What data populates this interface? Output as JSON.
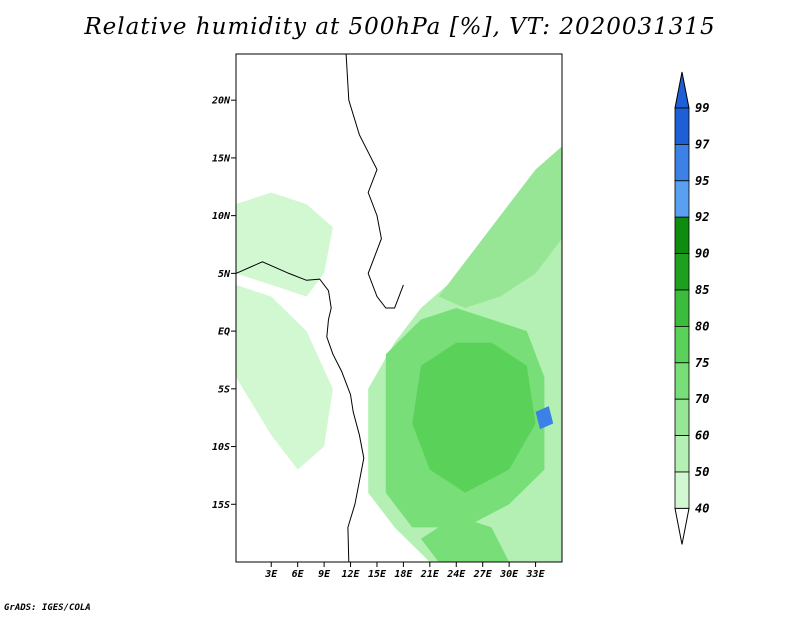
{
  "title": "Relative humidity at 500hPa [%], VT: 2020031315",
  "credit": "GrADS: IGES/COLA",
  "map": {
    "lat_range": [
      -20,
      24
    ],
    "lon_range": [
      -1,
      36
    ],
    "lat_labels": [
      {
        "text": "20N",
        "lat": 20
      },
      {
        "text": "15N",
        "lat": 15
      },
      {
        "text": "10N",
        "lat": 10
      },
      {
        "text": "5N",
        "lat": 5
      },
      {
        "text": "EQ",
        "lat": 0
      },
      {
        "text": "5S",
        "lat": -5
      },
      {
        "text": "10S",
        "lat": -10
      },
      {
        "text": "15S",
        "lat": -15
      }
    ],
    "lon_labels": [
      {
        "text": "3E",
        "lon": 3
      },
      {
        "text": "6E",
        "lon": 6
      },
      {
        "text": "9E",
        "lon": 9
      },
      {
        "text": "12E",
        "lon": 12
      },
      {
        "text": "15E",
        "lon": 15
      },
      {
        "text": "18E",
        "lon": 18
      },
      {
        "text": "21E",
        "lon": 21
      },
      {
        "text": "24E",
        "lon": 24
      },
      {
        "text": "27E",
        "lon": 27
      },
      {
        "text": "30E",
        "lon": 30
      },
      {
        "text": "33E",
        "lon": 33
      }
    ]
  },
  "colorbar": {
    "levels": [
      "99",
      "97",
      "95",
      "92",
      "90",
      "85",
      "80",
      "75",
      "70",
      "60",
      "50",
      "40"
    ],
    "colors": [
      "#1e5fd6",
      "#3c82e6",
      "#5aa0f0",
      "#0f8c0f",
      "#1ea01e",
      "#3cbc3c",
      "#5ad25a",
      "#78de78",
      "#96e696",
      "#b4f0b4",
      "#d2f8d2",
      "#f0fff0"
    ],
    "under_color": "#ffffff",
    "over_color": "#1e5fd6"
  },
  "humidity_fields": [
    {
      "name": "east-africa-band",
      "color": "#b4f0b4",
      "points": [
        [
          23,
          4
        ],
        [
          26,
          6
        ],
        [
          30,
          9
        ],
        [
          34,
          14
        ],
        [
          36,
          16
        ],
        [
          36,
          -20
        ],
        [
          21,
          -20
        ],
        [
          17,
          -17
        ],
        [
          14,
          -14
        ],
        [
          14,
          -5
        ],
        [
          17,
          -1
        ],
        [
          20,
          2
        ]
      ]
    },
    {
      "name": "central-congo-moist",
      "color": "#78de78",
      "points": [
        [
          16,
          -2
        ],
        [
          20,
          1
        ],
        [
          24,
          2
        ],
        [
          28,
          1
        ],
        [
          32,
          0
        ],
        [
          34,
          -4
        ],
        [
          34,
          -12
        ],
        [
          30,
          -15
        ],
        [
          25,
          -17
        ],
        [
          19,
          -17
        ],
        [
          16,
          -14
        ],
        [
          16,
          -8
        ]
      ]
    },
    {
      "name": "congo-core",
      "color": "#5ad25a",
      "points": [
        [
          20,
          -3
        ],
        [
          24,
          -1
        ],
        [
          28,
          -1
        ],
        [
          32,
          -3
        ],
        [
          33,
          -8
        ],
        [
          30,
          -12
        ],
        [
          25,
          -14
        ],
        [
          21,
          -12
        ],
        [
          19,
          -8
        ]
      ]
    },
    {
      "name": "northeast-plume",
      "color": "#96e696",
      "points": [
        [
          22,
          3
        ],
        [
          25,
          6
        ],
        [
          29,
          10
        ],
        [
          33,
          14
        ],
        [
          36,
          16
        ],
        [
          36,
          8
        ],
        [
          33,
          5
        ],
        [
          29,
          3
        ],
        [
          25,
          2
        ]
      ]
    },
    {
      "name": "west-coast-band",
      "color": "#d2f8d2",
      "points": [
        [
          -1,
          11
        ],
        [
          3,
          12
        ],
        [
          7,
          11
        ],
        [
          10,
          9
        ],
        [
          9,
          5
        ],
        [
          7,
          3
        ],
        [
          3,
          4
        ],
        [
          -1,
          5
        ]
      ]
    },
    {
      "name": "atlantic-patch",
      "color": "#d2f8d2",
      "points": [
        [
          -1,
          4
        ],
        [
          3,
          3
        ],
        [
          7,
          0
        ],
        [
          10,
          -5
        ],
        [
          9,
          -10
        ],
        [
          6,
          -12
        ],
        [
          3,
          -9
        ],
        [
          -1,
          -4
        ]
      ]
    },
    {
      "name": "southern-plume",
      "color": "#78de78",
      "points": [
        [
          24,
          -16
        ],
        [
          28,
          -17
        ],
        [
          30,
          -20
        ],
        [
          22,
          -20
        ],
        [
          20,
          -18
        ]
      ]
    },
    {
      "name": "lake-region-blue",
      "color": "#3c82e6",
      "points": [
        [
          33,
          -7
        ],
        [
          34.5,
          -6.5
        ],
        [
          35,
          -8
        ],
        [
          33.5,
          -8.5
        ]
      ]
    }
  ],
  "boundaries": [
    [
      [
        11.5,
        24
      ],
      [
        11.8,
        20
      ],
      [
        13,
        17
      ],
      [
        15,
        14
      ],
      [
        14,
        12
      ],
      [
        15,
        10
      ],
      [
        15.5,
        8
      ],
      [
        14,
        5
      ],
      [
        15,
        3
      ],
      [
        16,
        2
      ],
      [
        17,
        2
      ],
      [
        18,
        4
      ]
    ]
  ],
  "coastline": [
    [
      [
        -1,
        5
      ],
      [
        2,
        6
      ],
      [
        5,
        5
      ],
      [
        7,
        4.4
      ],
      [
        8.5,
        4.5
      ],
      [
        9.5,
        3.5
      ],
      [
        9.8,
        2
      ],
      [
        9.5,
        1
      ],
      [
        9.3,
        -0.5
      ],
      [
        10,
        -2
      ],
      [
        11,
        -3.5
      ],
      [
        12,
        -5.5
      ],
      [
        12.3,
        -7
      ],
      [
        13,
        -9
      ],
      [
        13.5,
        -11
      ],
      [
        13,
        -13
      ],
      [
        12.5,
        -15
      ],
      [
        11.7,
        -17
      ],
      [
        11.8,
        -20
      ]
    ]
  ]
}
